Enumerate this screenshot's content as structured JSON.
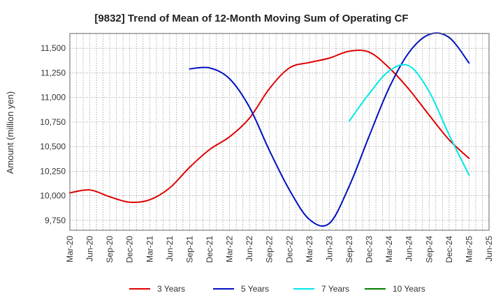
{
  "chart_data": {
    "type": "line",
    "title": "[9832]  Trend of Mean of 12-Month Moving Sum of Operating CF",
    "xlabel": "",
    "ylabel": "Amount (million yen)",
    "ylim": [
      9650,
      11650
    ],
    "yticks": [
      9750,
      10000,
      10250,
      10500,
      10750,
      11000,
      11250,
      11500
    ],
    "ytick_labels": [
      "9,750",
      "10,000",
      "10,250",
      "10,500",
      "10,750",
      "11,000",
      "11,250",
      "11,500"
    ],
    "x_categories": [
      "Mar-20",
      "Jun-20",
      "Sep-20",
      "Dec-20",
      "Mar-21",
      "Jun-21",
      "Sep-21",
      "Dec-21",
      "Mar-22",
      "Jun-22",
      "Sep-22",
      "Dec-22",
      "Mar-23",
      "Jun-23",
      "Sep-23",
      "Dec-23",
      "Mar-24",
      "Jun-24",
      "Sep-24",
      "Dec-24",
      "Mar-25",
      "Jun-25"
    ],
    "grid": true,
    "legend_position": "bottom",
    "series": [
      {
        "name": "3 Years",
        "color": "#e00000",
        "points": [
          [
            0,
            10030
          ],
          [
            1,
            10060
          ],
          [
            2,
            9990
          ],
          [
            3,
            9935
          ],
          [
            4,
            9960
          ],
          [
            5,
            10080
          ],
          [
            6,
            10290
          ],
          [
            7,
            10470
          ],
          [
            8,
            10600
          ],
          [
            9,
            10790
          ],
          [
            10,
            11090
          ],
          [
            11,
            11300
          ],
          [
            12,
            11355
          ],
          [
            13,
            11400
          ],
          [
            14,
            11470
          ],
          [
            15,
            11460
          ],
          [
            16,
            11300
          ],
          [
            17,
            11080
          ],
          [
            18,
            10820
          ],
          [
            19,
            10570
          ],
          [
            20,
            10380
          ]
        ]
      },
      {
        "name": "5 Years",
        "color": "#0010c0",
        "points": [
          [
            6,
            11290
          ],
          [
            7,
            11300
          ],
          [
            8,
            11190
          ],
          [
            9,
            10900
          ],
          [
            10,
            10460
          ],
          [
            11,
            10060
          ],
          [
            12,
            9760
          ],
          [
            13,
            9720
          ],
          [
            14,
            10100
          ],
          [
            15,
            10610
          ],
          [
            16,
            11100
          ],
          [
            17,
            11460
          ],
          [
            18,
            11640
          ],
          [
            19,
            11610
          ],
          [
            20,
            11350
          ]
        ]
      },
      {
        "name": "7 Years",
        "color": "#00e8e8",
        "points": [
          [
            14,
            10760
          ],
          [
            15,
            11040
          ],
          [
            16,
            11270
          ],
          [
            17,
            11320
          ],
          [
            18,
            11060
          ],
          [
            19,
            10620
          ],
          [
            20,
            10210
          ]
        ]
      },
      {
        "name": "10 Years",
        "color": "#008000",
        "points": []
      }
    ]
  }
}
